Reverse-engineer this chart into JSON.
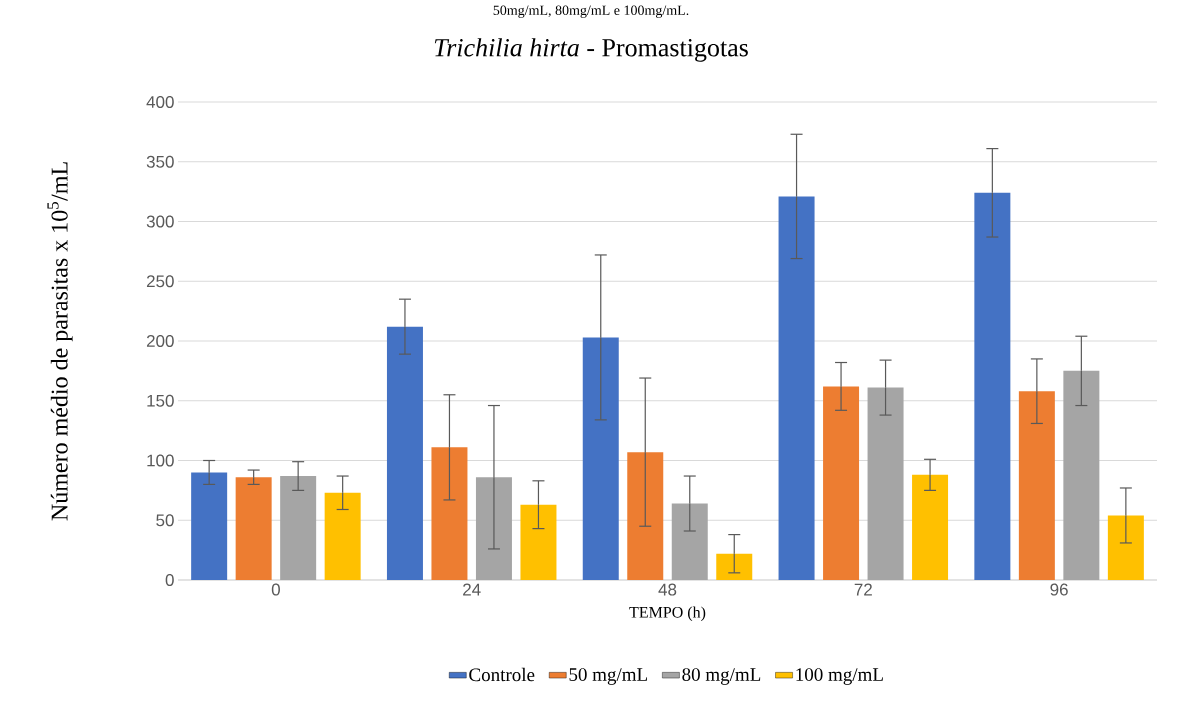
{
  "chart_data": {
    "type": "bar",
    "title": "*Trichilia hirta*  - Promastigotas",
    "xlabel": "TEMPO (h)",
    "ylabel": "Número médio de parasitas x 10$^{5}$/mL",
    "annotations": [
      "50mg/mL, 80mg/mL e 100mg/mL."
    ],
    "categories": [
      "0",
      "24",
      "48",
      "72",
      "96"
    ],
    "series": [
      {
        "name": "Controle",
        "color": "#4472c4",
        "values": [
          90,
          212,
          203,
          321,
          324
        ],
        "errors": [
          10,
          23,
          69,
          52,
          37
        ]
      },
      {
        "name": "50 mg/mL",
        "color": "#ed7d31",
        "values": [
          86,
          111,
          107,
          162,
          158
        ],
        "errors": [
          6,
          44,
          62,
          20,
          27
        ]
      },
      {
        "name": "80 mg/mL",
        "color": "#a5a5a5",
        "values": [
          87,
          86,
          64,
          161,
          175
        ],
        "errors": [
          12,
          60,
          23,
          23,
          29
        ]
      },
      {
        "name": "100 mg/mL",
        "color": "#ffc000",
        "values": [
          73,
          63,
          22,
          88,
          54
        ],
        "errors": [
          14,
          20,
          16,
          13,
          23
        ]
      }
    ],
    "ylim": [
      0,
      400
    ],
    "yticks": [
      0,
      50,
      100,
      150,
      200,
      250,
      300,
      350,
      400
    ],
    "grid": "y",
    "legend": "bottom"
  }
}
